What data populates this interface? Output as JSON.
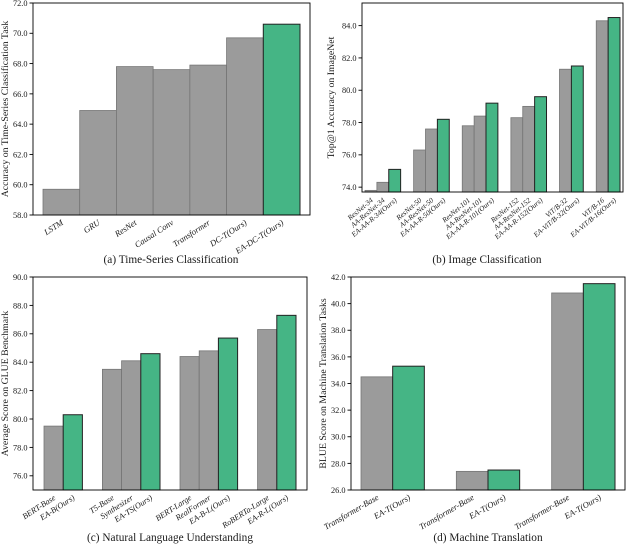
{
  "figure": {
    "background": "#ffffff",
    "bar_colors": {
      "baseline_fill": "#9b9b9b",
      "baseline_edge": "#757575",
      "ours_fill": "#45b585",
      "ours_edge": "#222222"
    },
    "axis_color": "#000000"
  },
  "chart_data": [
    {
      "id": "a",
      "type": "bar",
      "caption": "(a) Time-Series Classification",
      "ylabel": "Accuracy on Time-Series Classification Task",
      "xlabel": "",
      "ylim": [
        58.0,
        72.0
      ],
      "yticks": [
        58.0,
        60.0,
        62.0,
        64.0,
        66.0,
        68.0,
        70.0,
        72.0
      ],
      "grid": false,
      "legend": "none",
      "groups": [
        {
          "bars": [
            {
              "label": "LSTM",
              "value": 59.7,
              "ours": false
            },
            {
              "label": "GRU",
              "value": 64.9,
              "ours": false
            },
            {
              "label": "ResNet",
              "value": 67.8,
              "ours": false
            },
            {
              "label": "Causal Conv",
              "value": 67.6,
              "ours": false
            },
            {
              "label": "Transformer",
              "value": 67.9,
              "ours": false
            },
            {
              "label": "DC-T(Ours)",
              "value": 69.7,
              "ours": false
            },
            {
              "label": "EA-DC-T(Ours)",
              "value": 70.6,
              "ours": true
            }
          ]
        }
      ]
    },
    {
      "id": "b",
      "type": "bar",
      "caption": "(b) Image Classification",
      "ylabel": "Top@1 Accuracy on ImageNet",
      "xlabel": "",
      "ylim": [
        73.7,
        85.4
      ],
      "yticks": [
        74.0,
        76.0,
        78.0,
        80.0,
        82.0,
        84.0
      ],
      "grid": false,
      "legend": "none",
      "groups": [
        {
          "bars": [
            {
              "label": "ResNet-34",
              "value": 73.8,
              "ours": false
            },
            {
              "label": "AA-ResNet-34",
              "value": 74.3,
              "ours": false
            },
            {
              "label": "EA-AA-R-34(Ours)",
              "value": 75.1,
              "ours": true
            }
          ]
        },
        {
          "bars": [
            {
              "label": "ResNet-50",
              "value": 76.3,
              "ours": false
            },
            {
              "label": "AA-ResNet-50",
              "value": 77.6,
              "ours": false
            },
            {
              "label": "EA-AA-R-50(Ours)",
              "value": 78.2,
              "ours": true
            }
          ]
        },
        {
          "bars": [
            {
              "label": "ResNet-101",
              "value": 77.8,
              "ours": false
            },
            {
              "label": "AA-ResNet-101",
              "value": 78.4,
              "ours": false
            },
            {
              "label": "EA-AA-R-101(Ours)",
              "value": 79.2,
              "ours": true
            }
          ]
        },
        {
          "bars": [
            {
              "label": "ResNet-152",
              "value": 78.3,
              "ours": false
            },
            {
              "label": "AA-ResNet-152",
              "value": 79.0,
              "ours": false
            },
            {
              "label": "EA-AA-R-152(Ours)",
              "value": 79.6,
              "ours": true
            }
          ]
        },
        {
          "bars": [
            {
              "label": "ViT/B-32",
              "value": 81.3,
              "ours": false
            },
            {
              "label": "EA-ViT/B-32(Ours)",
              "value": 81.5,
              "ours": true
            }
          ]
        },
        {
          "bars": [
            {
              "label": "ViT/B-16",
              "value": 84.3,
              "ours": false
            },
            {
              "label": "EA-ViT/B-16(Ours)",
              "value": 84.5,
              "ours": true
            }
          ]
        }
      ]
    },
    {
      "id": "c",
      "type": "bar",
      "caption": "(c) Natural Language Understanding",
      "ylabel": "Average Score on GLUE Benchmark",
      "xlabel": "",
      "ylim": [
        75.0,
        90.0
      ],
      "yticks": [
        76.0,
        78.0,
        80.0,
        82.0,
        84.0,
        86.0,
        88.0,
        90.0
      ],
      "grid": false,
      "legend": "none",
      "groups": [
        {
          "bars": [
            {
              "label": "BERT-Base",
              "value": 79.5,
              "ours": false
            },
            {
              "label": "EA-B(Ours)",
              "value": 80.3,
              "ours": true
            }
          ]
        },
        {
          "bars": [
            {
              "label": "T5-Base",
              "value": 83.5,
              "ours": false
            },
            {
              "label": "Synthesizer",
              "value": 84.1,
              "ours": false
            },
            {
              "label": "EA-TS(Ours)",
              "value": 84.6,
              "ours": true
            }
          ]
        },
        {
          "bars": [
            {
              "label": "BERT-Large",
              "value": 84.4,
              "ours": false
            },
            {
              "label": "RealFormer",
              "value": 84.8,
              "ours": false
            },
            {
              "label": "EA-B-L(Ours)",
              "value": 85.7,
              "ours": true
            }
          ]
        },
        {
          "bars": [
            {
              "label": "RoBERTa-Large",
              "value": 86.3,
              "ours": false
            },
            {
              "label": "EA-R-L(Ours)",
              "value": 87.3,
              "ours": true
            }
          ]
        }
      ]
    },
    {
      "id": "d",
      "type": "bar",
      "caption": "(d) Machine Translation",
      "ylabel": "BLUE Score on Machine Translation Tasks",
      "xlabel": "",
      "ylim": [
        26.0,
        42.0
      ],
      "yticks": [
        26.0,
        28.0,
        30.0,
        32.0,
        34.0,
        36.0,
        38.0,
        40.0,
        42.0
      ],
      "grid": false,
      "legend": "none",
      "groups": [
        {
          "bars": [
            {
              "label": "Transformer-Base",
              "value": 34.5,
              "ours": false
            },
            {
              "label": "EA-T(Ours)",
              "value": 35.3,
              "ours": true
            }
          ]
        },
        {
          "bars": [
            {
              "label": "Transformer-Base",
              "value": 27.4,
              "ours": false
            },
            {
              "label": "EA-T(Ours)",
              "value": 27.5,
              "ours": true
            }
          ]
        },
        {
          "bars": [
            {
              "label": "Transformer-Base",
              "value": 40.8,
              "ours": false
            },
            {
              "label": "EA-T(Ours)",
              "value": 41.5,
              "ours": true
            }
          ]
        }
      ]
    }
  ]
}
